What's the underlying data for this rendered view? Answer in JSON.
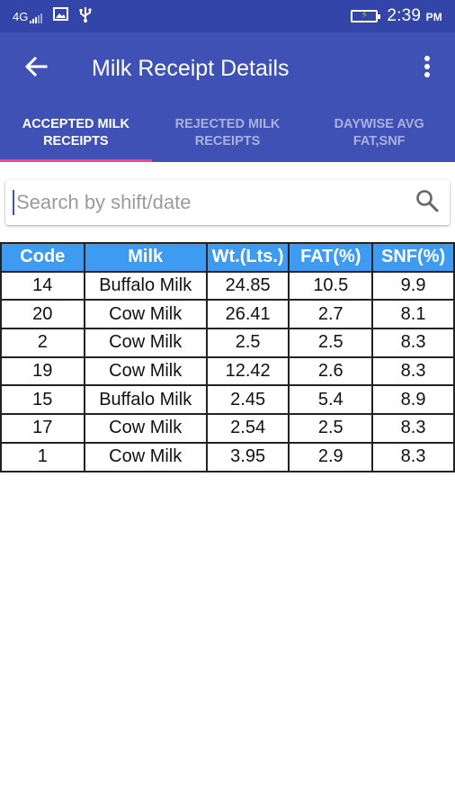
{
  "status_bar": {
    "network": "4G",
    "time": "2:39",
    "ampm": "PM",
    "icons": [
      "signal-icon",
      "image-icon",
      "usb-icon",
      "battery-charging-icon"
    ]
  },
  "app_bar": {
    "title": "Milk Receipt Details",
    "back_icon": "arrow-left-icon",
    "menu_icon": "more-vertical-icon",
    "color": "#3f51b5"
  },
  "tabs": [
    {
      "line1": "ACCEPTED MILK",
      "line2": "RECEIPTS",
      "active": true
    },
    {
      "line1": "REJECTED MILK",
      "line2": "RECEIPTS",
      "active": false
    },
    {
      "line1": "DAYWISE AVG",
      "line2": "FAT,SNF",
      "active": false
    }
  ],
  "tab_indicator_color": "#ff4081",
  "search": {
    "placeholder": "Search by shift/date",
    "value": "",
    "icon": "search-icon"
  },
  "table": {
    "header_color": "#3d9cf2",
    "columns": [
      "Code",
      "Milk",
      "Wt.(Lts.)",
      "FAT(%)",
      "SNF(%)"
    ],
    "rows": [
      [
        "14",
        "Buffalo Milk",
        "24.85",
        "10.5",
        "9.9"
      ],
      [
        "20",
        "Cow Milk",
        "26.41",
        "2.7",
        "8.1"
      ],
      [
        "2",
        "Cow Milk",
        "2.5",
        "2.5",
        "8.3"
      ],
      [
        "19",
        "Cow Milk",
        "12.42",
        "2.6",
        "8.3"
      ],
      [
        "15",
        "Buffalo Milk",
        "2.45",
        "5.4",
        "8.9"
      ],
      [
        "17",
        "Cow Milk",
        "2.54",
        "2.5",
        "8.3"
      ],
      [
        "1",
        "Cow Milk",
        "3.95",
        "2.9",
        "8.3"
      ]
    ]
  }
}
